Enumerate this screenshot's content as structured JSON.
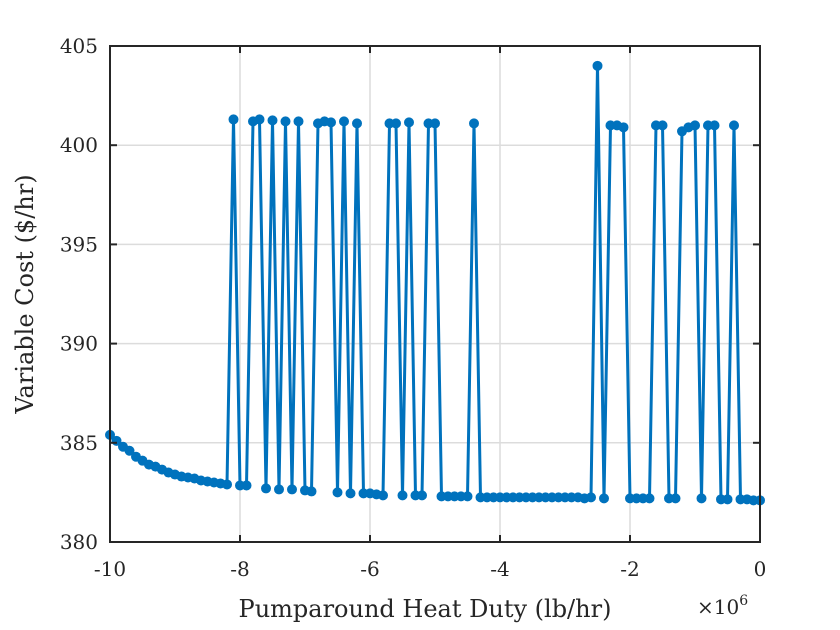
{
  "chart_data": {
    "type": "line",
    "title": "",
    "xlabel": "Pumparound Heat Duty (lb/hr)",
    "ylabel": "Variable Cost ($/hr)",
    "x_multiplier_label": "×10",
    "x_multiplier_exponent": "6",
    "xlim": [
      -10,
      0
    ],
    "ylim": [
      380,
      405
    ],
    "xticks": [
      -10,
      -8,
      -6,
      -4,
      -2,
      0
    ],
    "xtick_labels": [
      "-10",
      "-8",
      "-6",
      "-4",
      "-2",
      "0"
    ],
    "yticks": [
      380,
      385,
      390,
      395,
      400,
      405
    ],
    "ytick_labels": [
      "380",
      "385",
      "390",
      "395",
      "400",
      "405"
    ],
    "grid": true,
    "color": "#0072BD",
    "series": [
      {
        "x": [
          -10.0,
          -9.9,
          -9.8,
          -9.7,
          -9.6,
          -9.5,
          -9.4,
          -9.3,
          -9.2,
          -9.1,
          -9.0,
          -8.9,
          -8.8,
          -8.7,
          -8.6,
          -8.5,
          -8.4,
          -8.3,
          -8.2,
          -8.1,
          -8.0,
          -7.9,
          -7.8,
          -7.7,
          -7.6,
          -7.5,
          -7.4,
          -7.3,
          -7.2,
          -7.1,
          -7.0,
          -6.9,
          -6.8,
          -6.7,
          -6.6,
          -6.5,
          -6.4,
          -6.3,
          -6.2,
          -6.1,
          -6.0,
          -5.9,
          -5.8,
          -5.7,
          -5.6,
          -5.5,
          -5.4,
          -5.3,
          -5.2,
          -5.1,
          -5.0,
          -4.9,
          -4.8,
          -4.7,
          -4.6,
          -4.5,
          -4.4,
          -4.3,
          -4.2,
          -4.1,
          -4.0,
          -3.9,
          -3.8,
          -3.7,
          -3.6,
          -3.5,
          -3.4,
          -3.3,
          -3.2,
          -3.1,
          -3.0,
          -2.9,
          -2.8,
          -2.7,
          -2.6,
          -2.5,
          -2.4,
          -2.3,
          -2.2,
          -2.1,
          -2.0,
          -1.9,
          -1.8,
          -1.7,
          -1.6,
          -1.5,
          -1.4,
          -1.3,
          -1.2,
          -1.1,
          -1.0,
          -0.9,
          -0.8,
          -0.7,
          -0.6,
          -0.5,
          -0.4,
          -0.3,
          -0.2,
          -0.1,
          0.0
        ],
        "y": [
          385.4,
          385.1,
          384.8,
          384.6,
          384.3,
          384.1,
          383.9,
          383.8,
          383.65,
          383.5,
          383.4,
          383.3,
          383.25,
          383.2,
          383.1,
          383.05,
          383.0,
          382.95,
          382.9,
          401.3,
          382.85,
          382.85,
          401.2,
          401.3,
          382.7,
          401.25,
          382.65,
          401.2,
          382.65,
          401.2,
          382.6,
          382.55,
          401.1,
          401.2,
          401.15,
          382.5,
          401.2,
          382.45,
          401.1,
          382.45,
          382.45,
          382.4,
          382.35,
          401.1,
          401.1,
          382.35,
          401.15,
          382.35,
          382.35,
          401.1,
          401.1,
          382.3,
          382.3,
          382.3,
          382.3,
          382.3,
          401.1,
          382.25,
          382.25,
          382.25,
          382.25,
          382.25,
          382.25,
          382.25,
          382.25,
          382.25,
          382.25,
          382.25,
          382.25,
          382.25,
          382.25,
          382.25,
          382.25,
          382.2,
          382.25,
          404.0,
          382.2,
          401.0,
          401.0,
          400.9,
          382.2,
          382.2,
          382.2,
          382.2,
          401.0,
          401.0,
          382.2,
          382.2,
          400.7,
          400.9,
          401.0,
          382.2,
          401.0,
          401.0,
          382.15,
          382.15,
          401.0,
          382.15,
          382.15,
          382.1,
          382.1
        ]
      }
    ]
  }
}
